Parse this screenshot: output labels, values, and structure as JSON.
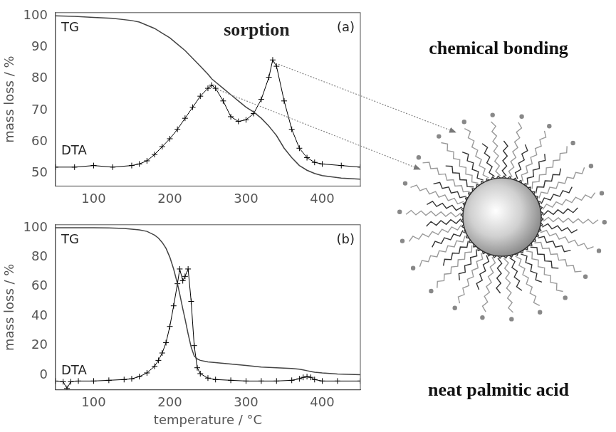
{
  "chart_data": [
    {
      "type": "line",
      "title": "(a)",
      "annotations": [
        "sorption"
      ],
      "y_label": "mass loss / %",
      "x": [
        50,
        75,
        100,
        125,
        150,
        160,
        170,
        180,
        190,
        200,
        210,
        220,
        230,
        240,
        250,
        255,
        260,
        270,
        280,
        290,
        300,
        310,
        320,
        330,
        335,
        340,
        350,
        360,
        370,
        380,
        390,
        400,
        425,
        450
      ],
      "series": [
        {
          "name": "TG",
          "color": "#444444",
          "marker": "none",
          "line_style": "solid",
          "values": [
            100,
            99.8,
            99.5,
            99.2,
            98.5,
            98,
            97,
            96,
            94.5,
            93,
            91,
            89,
            86.5,
            84,
            81.5,
            80,
            79,
            77,
            75,
            73,
            71,
            69.5,
            67.5,
            65,
            63.5,
            62,
            58,
            55,
            52.5,
            51,
            50,
            49.3,
            48.5,
            48.2
          ]
        },
        {
          "name": "DTA",
          "color": "#000000",
          "marker": "+",
          "line_style": "solid",
          "values": [
            52,
            52,
            52.5,
            52,
            52.5,
            53,
            54,
            56,
            58.5,
            61,
            64,
            67.5,
            71,
            74.5,
            77,
            78,
            77,
            73,
            68,
            66.5,
            67,
            69,
            73.5,
            80.5,
            86,
            84,
            73,
            64,
            58,
            55,
            53.5,
            53,
            52.5,
            52
          ]
        }
      ],
      "xlim": [
        50,
        450
      ],
      "xticks": [
        100,
        200,
        300,
        400
      ],
      "ylim": [
        46,
        101
      ],
      "yticks": [
        50,
        60,
        70,
        80,
        90,
        100
      ],
      "grid": false
    },
    {
      "type": "line",
      "title": "(b)",
      "x_label": "temperature / °C",
      "y_label": "mass loss / %",
      "x": [
        50,
        60,
        65,
        70,
        80,
        100,
        120,
        140,
        150,
        160,
        170,
        180,
        185,
        190,
        195,
        200,
        205,
        210,
        213,
        217,
        220,
        224,
        228,
        232,
        236,
        240,
        250,
        260,
        280,
        300,
        320,
        340,
        360,
        370,
        375,
        380,
        385,
        390,
        400,
        420,
        450
      ],
      "series": [
        {
          "name": "TG",
          "color": "#444444",
          "marker": "none",
          "line_style": "solid",
          "values": [
            100,
            100,
            100,
            100,
            100,
            100,
            99.8,
            99.5,
            99,
            98.5,
            97.5,
            95,
            93,
            90,
            86,
            80,
            72,
            62,
            55,
            45,
            38,
            28,
            19,
            13,
            11,
            10,
            9,
            8.5,
            7.5,
            6.5,
            5.5,
            5,
            4.5,
            4,
            3.5,
            3,
            2.5,
            2,
            1.5,
            0.8,
            0.3
          ]
        },
        {
          "name": "DTA",
          "color": "#000000",
          "marker": "+",
          "line_style": "solid",
          "values": [
            -4,
            -4.5,
            -9,
            -4.5,
            -4,
            -4,
            -3.5,
            -3,
            -2.5,
            -1,
            1.5,
            6,
            10,
            15,
            22,
            33,
            47,
            62,
            72,
            64,
            67,
            72,
            50,
            20,
            5,
            1,
            -2,
            -3,
            -3.5,
            -4,
            -4,
            -4,
            -3.5,
            -2.5,
            -1.5,
            -1,
            -1.5,
            -3,
            -4,
            -4,
            -4
          ]
        }
      ],
      "xlim": [
        50,
        450
      ],
      "xticks": [
        100,
        200,
        300,
        400
      ],
      "ylim": [
        -10,
        102
      ],
      "yticks": [
        0,
        20,
        40,
        60,
        80,
        100
      ],
      "grid": false
    }
  ],
  "diagram": {
    "labels": [
      "chemical bonding",
      "neat palmitic acid"
    ]
  }
}
